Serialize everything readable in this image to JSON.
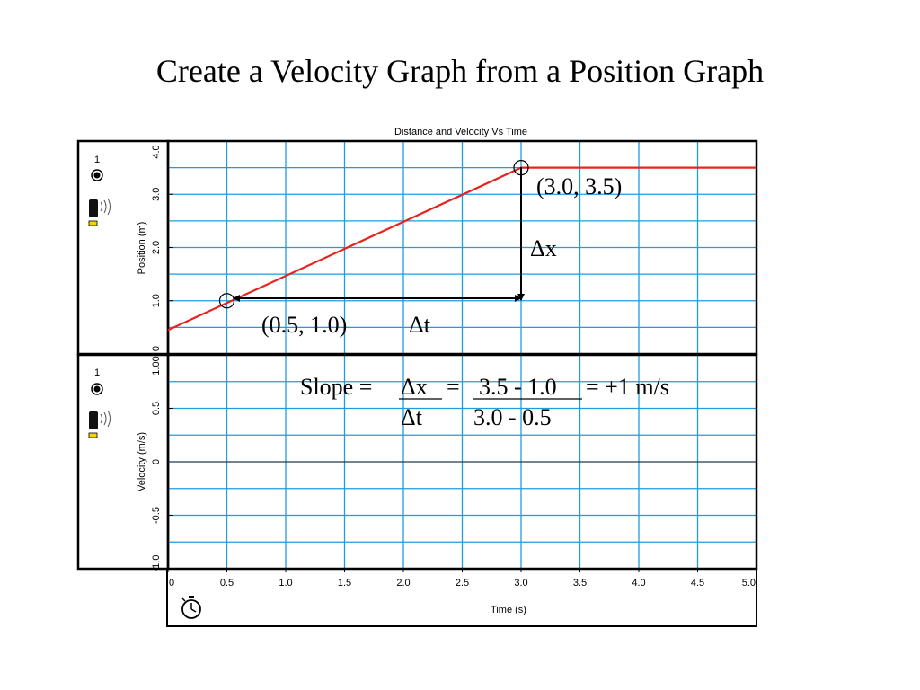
{
  "slide": {
    "title": "Create a Velocity Graph from a Position Graph"
  },
  "chart_data": {
    "type": "line",
    "title": "Distance and Velocity Vs Time",
    "xlabel": "Time (s)",
    "xlim": [
      0,
      5.0
    ],
    "x_ticks": [
      "0",
      "0.5",
      "1.0",
      "1.5",
      "2.0",
      "2.5",
      "3.0",
      "3.5",
      "4.0",
      "4.5",
      "5.0"
    ],
    "panels": [
      {
        "ylabel": "Position (m)",
        "ylim": [
          0,
          4.0
        ],
        "y_ticks": [
          "0",
          "1.0",
          "2.0",
          "3.0",
          "4.0"
        ],
        "series": [
          {
            "x": [
              0,
              3.0,
              5.0
            ],
            "y": [
              0.45,
              3.5,
              3.5
            ],
            "color": "#e8231e"
          }
        ],
        "markers": [
          {
            "x": 0.5,
            "y": 1.0
          },
          {
            "x": 3.0,
            "y": 3.5
          }
        ],
        "sensor": {
          "number": "1"
        }
      },
      {
        "ylabel": "Velocity (m/s)",
        "ylim": [
          -1.0,
          1.0
        ],
        "y_ticks": [
          "-1.0",
          "-0.5",
          "0",
          "0.5",
          "1.00"
        ],
        "series": [],
        "sensor": {
          "number": "1"
        }
      }
    ],
    "grid": true,
    "annotations": {
      "point_top": "(3.0, 3.5)",
      "point_bottom": "(0.5, 1.0)",
      "delta_x": "Δx",
      "delta_t": "Δt",
      "slope_label": "Slope =",
      "slope_num": "Δx",
      "slope_eq": "=",
      "slope_values_num": "3.5 - 1.0",
      "slope_result": "= +1 m/s",
      "slope_den": "Δt",
      "slope_values_den": "3.0 - 0.5"
    },
    "colors": {
      "grid": "#1f9be0",
      "line": "#e8231e"
    }
  }
}
